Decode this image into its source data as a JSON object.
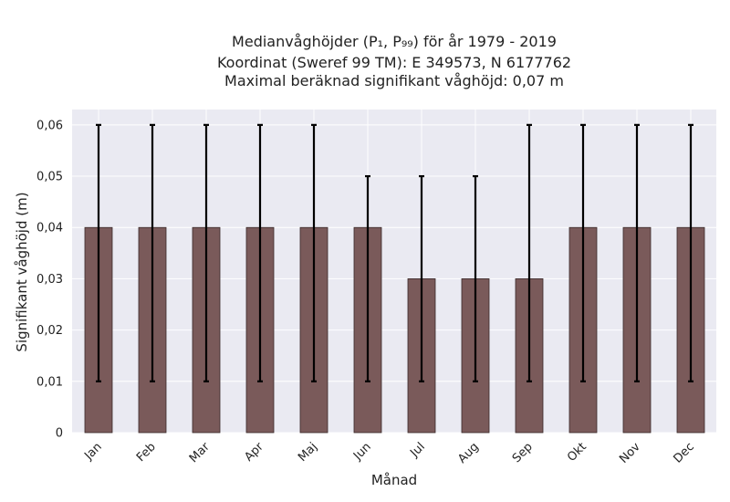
{
  "chart_data": {
    "type": "bar",
    "title": [
      "Medianvåghöjder (P₁, P₉₉) för år 1979 - 2019",
      "Koordinat (Sweref 99 TM): E 349573, N 6177762",
      "Maximal beräknad signifikant våghöjd: 0,07 m"
    ],
    "xlabel": "Månad",
    "ylabel": "Signifikant våghöjd (m)",
    "ylim": [
      0,
      0.063
    ],
    "yticks": [
      0,
      0.01,
      0.02,
      0.03,
      0.04,
      0.05,
      0.06
    ],
    "ytick_labels": [
      "0",
      "0,01",
      "0,02",
      "0,03",
      "0,04",
      "0,05",
      "0,06"
    ],
    "categories": [
      "Jan",
      "Feb",
      "Mar",
      "Apr",
      "Maj",
      "Jun",
      "Jul",
      "Aug",
      "Sep",
      "Okt",
      "Nov",
      "Dec"
    ],
    "values": [
      0.04,
      0.04,
      0.04,
      0.04,
      0.04,
      0.04,
      0.03,
      0.03,
      0.03,
      0.04,
      0.04,
      0.04
    ],
    "p1": [
      0.01,
      0.01,
      0.01,
      0.01,
      0.01,
      0.01,
      0.01,
      0.01,
      0.01,
      0.01,
      0.01,
      0.01
    ],
    "p99": [
      0.06,
      0.06,
      0.06,
      0.06,
      0.06,
      0.05,
      0.05,
      0.05,
      0.06,
      0.06,
      0.06,
      0.06
    ],
    "grid": true,
    "colors": {
      "bar": "#7a5a5a",
      "background": "#eaeaf2",
      "error": "#000000"
    }
  }
}
